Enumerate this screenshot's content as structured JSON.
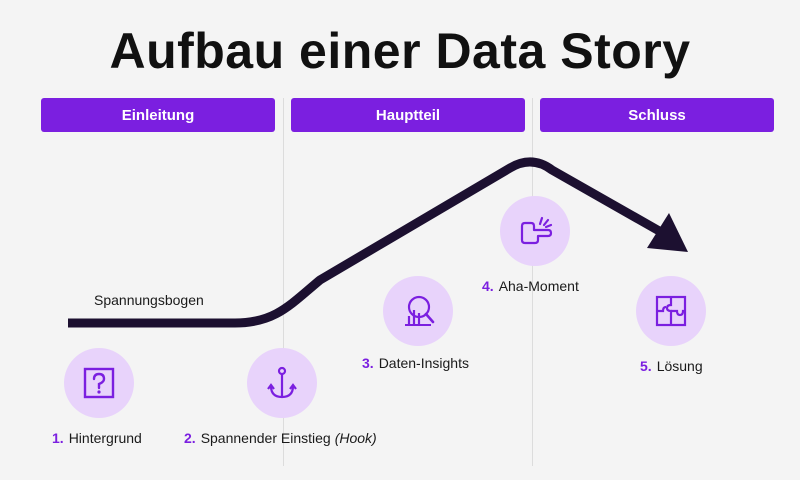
{
  "title": "Aufbau einer Data Story",
  "phases": [
    {
      "label": "Einleitung"
    },
    {
      "label": "Hauptteil"
    },
    {
      "label": "Schluss"
    }
  ],
  "arc_label": "Spannungsbogen",
  "steps": [
    {
      "num": "1.",
      "label": "Hintergrund",
      "icon": "question-box-icon"
    },
    {
      "num": "2.",
      "label": "Spannender Einstieg",
      "extra": "(Hook)",
      "icon": "anchor-icon"
    },
    {
      "num": "3.",
      "label": "Daten-Insights",
      "icon": "magnifier-chart-icon"
    },
    {
      "num": "4.",
      "label": "Aha-Moment",
      "icon": "pointing-hand-icon"
    },
    {
      "num": "5.",
      "label": "Lösung",
      "icon": "puzzle-icon"
    }
  ],
  "colors": {
    "accent": "#7b1fe0",
    "icon_bg": "#e8d3fb",
    "arc": "#1c1030",
    "background": "#f4f4f4"
  }
}
